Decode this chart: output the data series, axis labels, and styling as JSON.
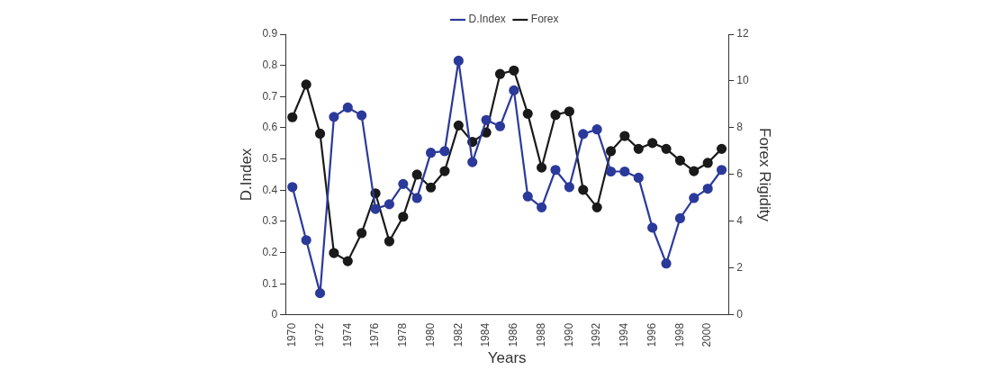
{
  "chart_data": {
    "type": "line",
    "xlabel": "Years",
    "ylabel": "D.Index",
    "y2label": "Forex Rigidity",
    "categories": [
      "1970",
      null,
      "1972",
      null,
      "1974",
      null,
      "1976",
      null,
      "1978",
      null,
      "1980",
      null,
      "1982",
      null,
      "1984",
      null,
      "1986",
      null,
      "1988",
      null,
      "1990",
      null,
      "1992",
      null,
      "1994",
      null,
      "1996",
      null,
      "1998",
      null,
      "2000",
      null
    ],
    "series": [
      {
        "name": "D.Index",
        "color": "#2b3a9a",
        "values": [
          0.41,
          0.24,
          0.07,
          0.635,
          0.665,
          0.64,
          0.34,
          0.355,
          0.42,
          0.375,
          0.52,
          0.525,
          0.815,
          0.49,
          0.625,
          0.605,
          0.72,
          0.38,
          0.345,
          0.465,
          0.41,
          0.58,
          0.595,
          0.46,
          0.46,
          0.44,
          0.28,
          0.165,
          0.31,
          0.375,
          0.405,
          0.465
        ]
      },
      {
        "name": "Forex",
        "color": "#1a1a1a",
        "axis": "y2",
        "values": [
          8.45,
          9.85,
          7.75,
          2.65,
          2.3,
          3.5,
          5.2,
          3.15,
          4.2,
          6.0,
          5.45,
          6.15,
          8.1,
          7.4,
          7.8,
          10.3,
          10.45,
          8.6,
          6.3,
          8.55,
          8.7,
          5.35,
          4.6,
          7.0,
          7.65,
          7.1,
          7.35,
          7.1,
          6.6,
          6.15,
          6.5,
          7.1
        ]
      }
    ],
    "ylim": [
      0,
      0.9
    ],
    "yticks": [
      0,
      0.1,
      0.2,
      0.3,
      0.4,
      0.5,
      0.6,
      0.7,
      0.8,
      0.9
    ],
    "y2lim": [
      0,
      12
    ],
    "y2ticks": [
      0,
      2,
      4,
      6,
      8,
      10,
      12
    ],
    "grid": false,
    "legend": "top",
    "marker": "circle",
    "line_style": "solid"
  }
}
